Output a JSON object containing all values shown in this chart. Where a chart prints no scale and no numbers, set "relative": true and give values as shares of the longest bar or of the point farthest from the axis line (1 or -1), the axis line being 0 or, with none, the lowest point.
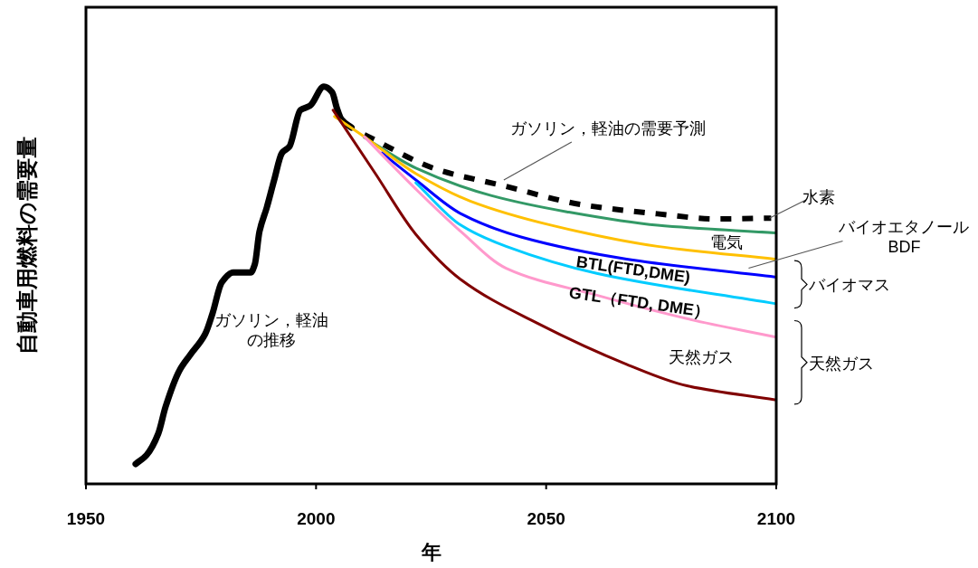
{
  "chart_data": {
    "type": "line",
    "relative": true,
    "xlabel": "年",
    "ylabel": "自動車用燃料の需要量",
    "xlim": [
      1950,
      2100
    ],
    "xticks": [
      1950,
      2000,
      2050,
      2100
    ],
    "grid": false,
    "series": [
      {
        "color": "#000000",
        "line_style": "solid",
        "x": [
          1960.8,
          1963.2,
          1965.7,
          1967.3,
          1970.3,
          1972.6,
          1975.9,
          1977.5,
          1979.5,
          1982,
          1985.8,
          1986.7,
          1987.7,
          1989.3,
          1990.9,
          1992.6,
          1994.2,
          1996.6,
          1998.7,
          2001.7,
          2003.5,
          2004.5,
          2005.5,
          2007.7
        ],
        "values": [
          0.05,
          0.073,
          0.126,
          0.194,
          0.285,
          0.324,
          0.377,
          0.429,
          0.507,
          0.532,
          0.532,
          0.553,
          0.635,
          0.696,
          0.765,
          0.833,
          0.849,
          0.941,
          0.952,
          1.0,
          0.986,
          0.947,
          0.918,
          0.897
        ]
      },
      {
        "color": "#000000",
        "line_style": "dashed",
        "x": [
          2010.5,
          2026.2,
          2041.3,
          2057.7,
          2074.2,
          2087.2,
          2098.9
        ],
        "values": [
          0.879,
          0.792,
          0.749,
          0.703,
          0.68,
          0.667,
          0.669
        ]
      },
      {
        "color": "#339966",
        "line_style": "solid",
        "x": [
          2010.5,
          2021.7,
          2038,
          2054.5,
          2074.2,
          2099.7
        ],
        "values": [
          0.872,
          0.795,
          0.726,
          0.685,
          0.651,
          0.632
        ]
      },
      {
        "color": "#ffc000",
        "line_style": "solid",
        "x": [
          2004,
          2010.5,
          2021.7,
          2033.5,
          2051.2,
          2074.2,
          2099.7
        ],
        "values": [
          0.925,
          0.874,
          0.781,
          0.712,
          0.651,
          0.598,
          0.566
        ]
      },
      {
        "color": "#0000ff",
        "line_style": "solid",
        "x": [
          2014.3,
          2021.7,
          2031.5,
          2044.7,
          2067.5,
          2099.7
        ],
        "values": [
          0.833,
          0.765,
          0.68,
          0.621,
          0.566,
          0.521
        ]
      },
      {
        "color": "#00ccff",
        "line_style": "solid",
        "x": [
          2021.7,
          2031.5,
          2041.3,
          2061,
          2099.7
        ],
        "values": [
          0.758,
          0.651,
          0.598,
          0.53,
          0.454
        ]
      },
      {
        "color": "#ff99cc",
        "line_style": "solid",
        "x": [
          2010.5,
          2021.7,
          2031.5,
          2041.3,
          2061,
          2080.6,
          2099.7
        ],
        "values": [
          0.874,
          0.742,
          0.635,
          0.543,
          0.475,
          0.416,
          0.37
        ]
      },
      {
        "color": "#800000",
        "line_style": "solid",
        "x": [
          2003.7,
          2012.9,
          2021.7,
          2031.5,
          2047.8,
          2067.5,
          2080.6,
          2099.7
        ],
        "values": [
          0.941,
          0.781,
          0.628,
          0.514,
          0.406,
          0.301,
          0.247,
          0.212
        ]
      }
    ],
    "annotations": [
      "ガソリン，軽油の推移",
      {
        "text": "ガソリン，軽油の需要予測",
        "x": 2040.8,
        "y": 0.765
      },
      {
        "text": "水素",
        "x": 2098.5,
        "y": 0.669
      },
      "電気",
      {
        "text": "バイオエタノール\nBDF",
        "x": 2094,
        "y": 0.543
      },
      "BTL(FTD,DME)",
      {
        "text": "GTL（FTD, DME）",
        "x": 2070.3,
        "y": 0.457
      },
      "天然ガス",
      "バイオマス",
      "天然ガス"
    ]
  }
}
